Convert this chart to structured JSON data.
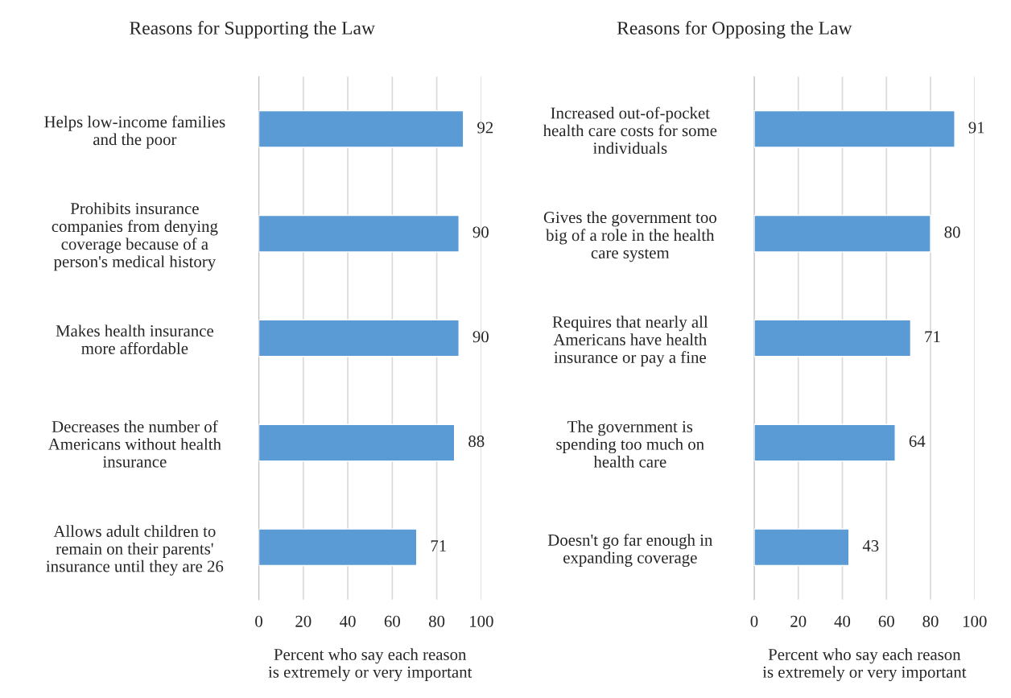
{
  "chart_data": [
    {
      "type": "bar",
      "orientation": "horizontal",
      "title": "Reasons for Supporting the Law",
      "categories": [
        "Helps low-income families\nand the poor",
        "Prohibits insurance\ncompanies from denying\ncoverage because of a\nperson's medical history",
        "Makes health insurance\nmore affordable",
        "Decreases the number of\nAmericans without health\ninsurance",
        "Allows adult children to\nremain on their parents'\ninsurance until they are 26"
      ],
      "values": [
        92,
        90,
        90,
        88,
        71
      ],
      "color": "#5b9bd5",
      "xlim": [
        0,
        100
      ],
      "xticks": [
        0,
        20,
        40,
        60,
        80,
        100
      ],
      "grid": "x",
      "data_labels": true,
      "legend": false,
      "xlabel": "Percent who say each reason\nis extremely or very important"
    },
    {
      "type": "bar",
      "orientation": "horizontal",
      "title": "Reasons for Opposing the Law",
      "categories": [
        "Increased out-of-pocket\nhealth care costs for some\nindividuals",
        "Gives the government too\nbig of a role in the health\ncare system",
        "Requires that nearly all\nAmericans have health\ninsurance or pay a fine",
        "The government is\nspending too much on\nhealth care",
        "Doesn't go far enough in\nexpanding coverage"
      ],
      "values": [
        91,
        80,
        71,
        64,
        43
      ],
      "color": "#5b9bd5",
      "xlim": [
        0,
        100
      ],
      "xticks": [
        0,
        20,
        40,
        60,
        80,
        100
      ],
      "grid": "x",
      "data_labels": true,
      "legend": false,
      "xlabel": "Percent who say each reason\nis extremely or very important"
    }
  ]
}
